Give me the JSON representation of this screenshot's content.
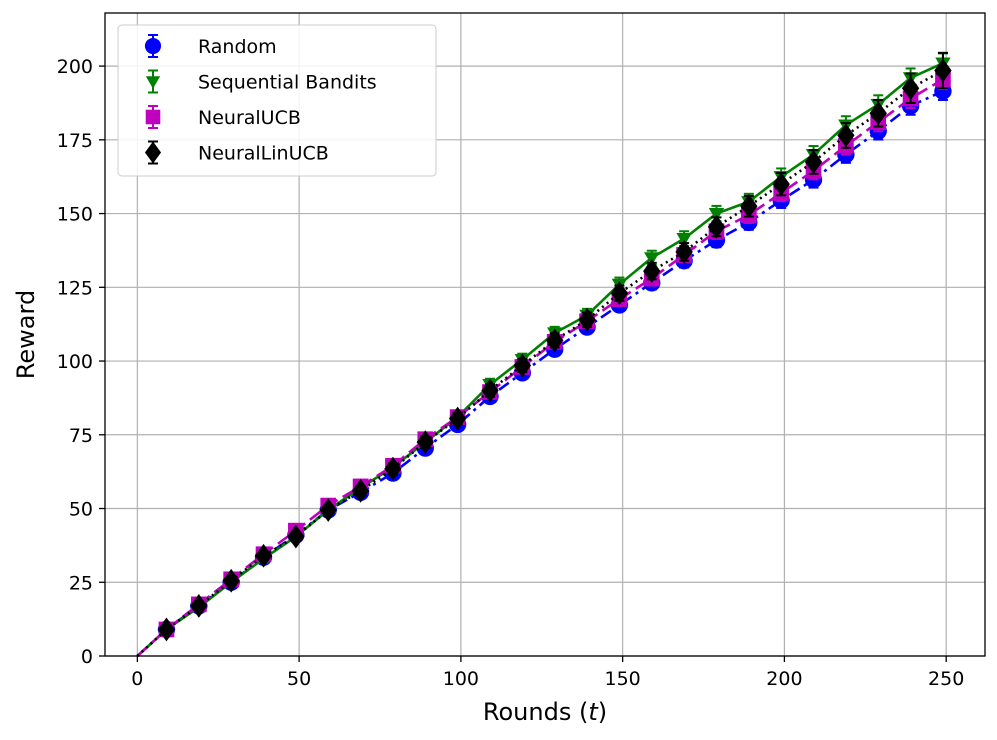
{
  "chart_data": {
    "type": "line",
    "title": "",
    "xlabel": "Rounds (",
    "xlabel_var": "t",
    "xlabel_close": ")",
    "ylabel": "Reward",
    "xlim": [
      -10,
      262
    ],
    "ylim": [
      0,
      218
    ],
    "xticks": [
      0,
      50,
      100,
      150,
      200,
      250
    ],
    "yticks": [
      0,
      25,
      50,
      75,
      100,
      125,
      150,
      175,
      200
    ],
    "grid": true,
    "legend_position": "top-left",
    "series": [
      {
        "name": "Random",
        "color": "#0000ff",
        "marker": "circle",
        "dash": "12,5,3,5",
        "x": [
          0,
          9,
          19,
          29,
          39,
          49,
          59,
          69,
          79,
          89,
          99,
          109,
          119,
          129,
          139,
          149,
          159,
          169,
          179,
          189,
          199,
          209,
          219,
          229,
          239,
          249
        ],
        "y": [
          0,
          9,
          17,
          25,
          33.5,
          41,
          49.5,
          55.5,
          62,
          70.5,
          78.5,
          88,
          96,
          104,
          111.5,
          119,
          126.5,
          134,
          141,
          147,
          154.5,
          161.5,
          170,
          178,
          186.5,
          191.5
        ],
        "err": [
          0.3,
          0.8,
          1,
          1.2,
          1.3,
          1.4,
          1.4,
          1.5,
          1.6,
          1.7,
          1.8,
          1.8,
          1.9,
          2,
          2,
          2.1,
          2.2,
          2.3,
          2.4,
          2.5,
          2.6,
          2.7,
          2.8,
          2.9,
          3,
          3
        ]
      },
      {
        "name": "Sequential Bandits",
        "color": "#008000",
        "marker": "triangle-down",
        "dash": "",
        "x": [
          0,
          9,
          19,
          29,
          39,
          49,
          59,
          69,
          79,
          89,
          99,
          109,
          119,
          129,
          139,
          149,
          159,
          169,
          179,
          189,
          199,
          209,
          219,
          229,
          239,
          249
        ],
        "y": [
          0,
          9,
          16.5,
          25,
          33,
          40.5,
          49.5,
          57,
          64,
          72.5,
          81,
          92,
          100.5,
          109.5,
          115.5,
          126,
          135,
          141.5,
          150,
          154,
          162.5,
          170,
          180,
          187,
          196,
          201
        ],
        "err": [
          0.3,
          0.8,
          1,
          1.2,
          1.3,
          1.4,
          1.5,
          1.6,
          1.7,
          1.8,
          1.9,
          2,
          2,
          2.1,
          2.2,
          2.3,
          2.4,
          2.5,
          2.6,
          2.7,
          2.8,
          2.9,
          3,
          3.1,
          3.2,
          3.3
        ]
      },
      {
        "name": "NeuralUCB",
        "color": "#bf00bf",
        "marker": "square",
        "dash": "14,6",
        "x": [
          0,
          9,
          19,
          29,
          39,
          49,
          59,
          69,
          79,
          89,
          99,
          109,
          119,
          129,
          139,
          149,
          159,
          169,
          179,
          189,
          199,
          209,
          219,
          229,
          239,
          249
        ],
        "y": [
          0,
          9,
          17.5,
          26,
          34.5,
          42.5,
          51,
          57.5,
          64.5,
          73.5,
          81,
          89.5,
          98,
          106.5,
          113.5,
          121,
          128,
          136,
          144,
          149.5,
          157,
          164.5,
          173,
          181,
          189,
          195.5
        ],
        "err": [
          0.3,
          0.8,
          1,
          1.2,
          1.3,
          1.4,
          1.5,
          1.6,
          1.7,
          1.8,
          1.9,
          2,
          2,
          2.1,
          2.2,
          2.3,
          2.4,
          2.5,
          2.6,
          2.7,
          2.8,
          2.9,
          3,
          3.1,
          3.2,
          3.3
        ]
      },
      {
        "name": "NeuralLinUCB",
        "color": "#000000",
        "marker": "diamond",
        "dash": "2,4",
        "x": [
          0,
          9,
          19,
          29,
          39,
          49,
          59,
          69,
          79,
          89,
          99,
          109,
          119,
          129,
          139,
          149,
          159,
          169,
          179,
          189,
          199,
          209,
          219,
          229,
          239,
          249
        ],
        "y": [
          0,
          9,
          17,
          25.5,
          34,
          40.5,
          49.5,
          56,
          63.5,
          72.5,
          80.5,
          90,
          98.5,
          107,
          114,
          123,
          130.5,
          137,
          145.5,
          152.5,
          160,
          167.5,
          176.5,
          184,
          192.5,
          198.5
        ],
        "err": [
          0.3,
          0.9,
          1.1,
          1.3,
          1.4,
          1.5,
          1.6,
          1.7,
          1.8,
          1.9,
          2,
          2.1,
          2.2,
          2.4,
          2.5,
          2.6,
          2.8,
          3,
          3.2,
          3.5,
          3.8,
          4,
          4.2,
          4.5,
          5,
          6
        ]
      }
    ]
  }
}
